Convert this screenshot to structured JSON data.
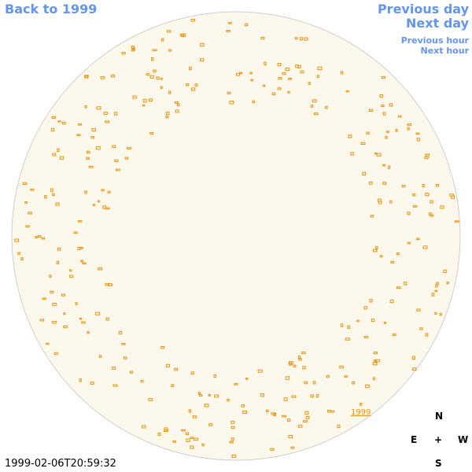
{
  "nav": {
    "back": "Back to 1999",
    "previous_day": "Previous day",
    "next_day": "Next day",
    "previous_hour": "Previous hour",
    "next_hour": "Next hour"
  },
  "image": {
    "year_label": "1999",
    "timestamp": "1999-02-06T20:59:32"
  },
  "compass": {
    "north": "N",
    "east": "E",
    "center": "+",
    "west": "W",
    "south": "S"
  }
}
